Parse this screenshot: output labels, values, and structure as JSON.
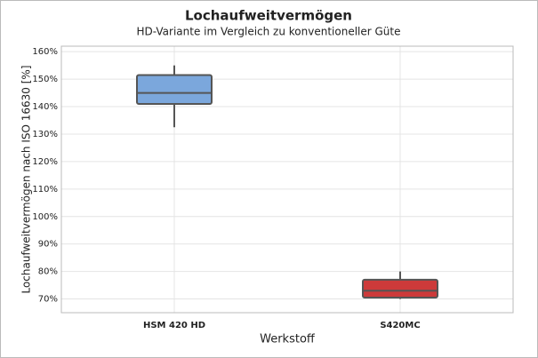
{
  "chart_data": {
    "type": "box",
    "title": "Lochaufweitvermögen",
    "subtitle": "HD-Variante im Vergleich zu konventioneller Güte",
    "x_label": "Werkstoff",
    "y_label": "Lochaufweitvermögen nach ISO 16630 [%]",
    "categories": [
      "HSM 420 HD",
      "S420MC"
    ],
    "boxes": [
      {
        "min": 132.5,
        "q1": 141,
        "median": 145,
        "q3": 151.5,
        "max": 155
      },
      {
        "min": 70,
        "q1": 70.5,
        "median": 73,
        "q3": 77,
        "max": 80
      }
    ],
    "colors": [
      "#7ba7dc",
      "#cd3a3a"
    ],
    "ylim": [
      65,
      162
    ],
    "yticks": [
      {
        "value": 70,
        "label": "70%"
      },
      {
        "value": 80,
        "label": "80%"
      },
      {
        "value": 90,
        "label": "90%"
      },
      {
        "value": 100,
        "label": "100%"
      },
      {
        "value": 110,
        "label": "110%"
      },
      {
        "value": 120,
        "label": "120%"
      },
      {
        "value": 130,
        "label": "130%"
      },
      {
        "value": 140,
        "label": "140%"
      },
      {
        "value": 150,
        "label": "150%"
      },
      {
        "value": 160,
        "label": "160%"
      }
    ],
    "grid": true
  }
}
